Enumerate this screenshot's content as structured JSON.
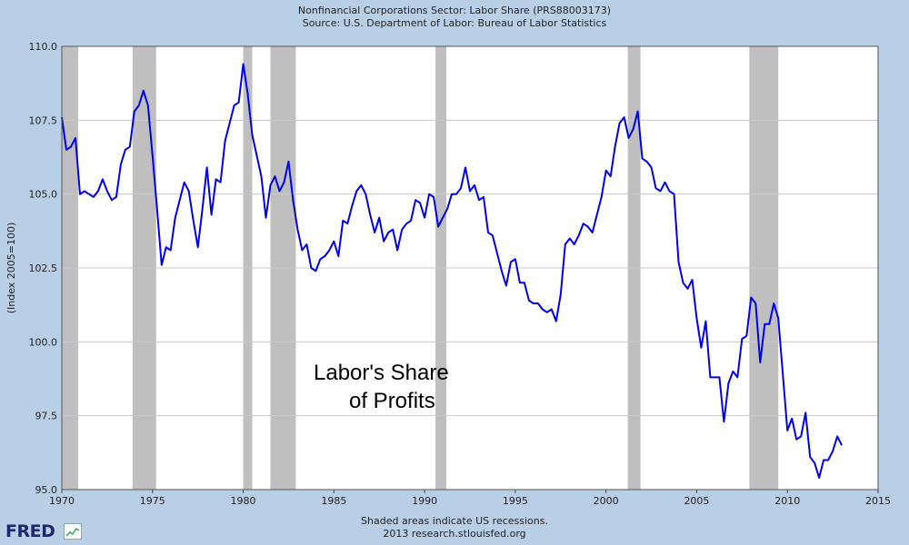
{
  "header": {
    "title": "Nonfinancial Corporations Sector: Labor Share (PRS88003173)",
    "source": "Source: U.S. Department of Labor: Bureau of Labor Statistics"
  },
  "footer": {
    "note": "Shaded areas indicate US recessions.",
    "credit": "2013 research.stlouisfed.org",
    "logo": "FRED"
  },
  "colors": {
    "background": "#b9cfe6",
    "plot_bg": "#ffffff",
    "line": "#0000ee",
    "recession": "#bfbfbf",
    "grid": "#c8c8c8"
  },
  "chart_data": {
    "type": "line",
    "title": "Nonfinancial Corporations Sector: Labor Share (PRS88003173)",
    "subtitle": "Source: U.S. Department of Labor: Bureau of Labor Statistics",
    "xlabel": "",
    "ylabel": "(Index 2005=100)",
    "xlim": [
      1970,
      2015
    ],
    "ylim": [
      95.0,
      110.0
    ],
    "xticks": [
      1970,
      1975,
      1980,
      1985,
      1990,
      1995,
      2000,
      2005,
      2010,
      2015
    ],
    "yticks": [
      95.0,
      97.5,
      100.0,
      102.5,
      105.0,
      107.5,
      110.0
    ],
    "ytick_labels": [
      "95.0",
      "97.5",
      "100.0",
      "102.5",
      "105.0",
      "107.5",
      "110.0"
    ],
    "grid": true,
    "annotation": [
      "Labor's Share",
      "of Profits"
    ],
    "recessions": [
      [
        1969.9,
        1970.9
      ],
      [
        1973.9,
        1975.2
      ],
      [
        1980.0,
        1980.5
      ],
      [
        1981.5,
        1982.9
      ],
      [
        1990.6,
        1991.2
      ],
      [
        2001.2,
        2001.9
      ],
      [
        2007.9,
        2009.5
      ]
    ],
    "series": [
      {
        "x": [
          1970.0,
          1970.25,
          1970.5,
          1970.75,
          1971.0,
          1971.25,
          1971.5,
          1971.75,
          1972.0,
          1972.25,
          1972.5,
          1972.75,
          1973.0,
          1973.25,
          1973.5,
          1973.75,
          1974.0,
          1974.25,
          1974.5,
          1974.75,
          1975.0,
          1975.25,
          1975.5,
          1975.75,
          1976.0,
          1976.25,
          1976.5,
          1976.75,
          1977.0,
          1977.25,
          1977.5,
          1977.75,
          1978.0,
          1978.25,
          1978.5,
          1978.75,
          1979.0,
          1979.25,
          1979.5,
          1979.75,
          1980.0,
          1980.25,
          1980.5,
          1980.75,
          1981.0,
          1981.25,
          1981.5,
          1981.75,
          1982.0,
          1982.25,
          1982.5,
          1982.75,
          1983.0,
          1983.25,
          1983.5,
          1983.75,
          1984.0,
          1984.25,
          1984.5,
          1984.75,
          1985.0,
          1985.25,
          1985.5,
          1985.75,
          1986.0,
          1986.25,
          1986.5,
          1986.75,
          1987.0,
          1987.25,
          1987.5,
          1987.75,
          1988.0,
          1988.25,
          1988.5,
          1988.75,
          1989.0,
          1989.25,
          1989.5,
          1989.75,
          1990.0,
          1990.25,
          1990.5,
          1990.75,
          1991.0,
          1991.25,
          1991.5,
          1991.75,
          1992.0,
          1992.25,
          1992.5,
          1992.75,
          1993.0,
          1993.25,
          1993.5,
          1993.75,
          1994.0,
          1994.25,
          1994.5,
          1994.75,
          1995.0,
          1995.25,
          1995.5,
          1995.75,
          1996.0,
          1996.25,
          1996.5,
          1996.75,
          1997.0,
          1997.25,
          1997.5,
          1997.75,
          1998.0,
          1998.25,
          1998.5,
          1998.75,
          1999.0,
          1999.25,
          1999.5,
          1999.75,
          2000.0,
          2000.25,
          2000.5,
          2000.75,
          2001.0,
          2001.25,
          2001.5,
          2001.75,
          2002.0,
          2002.25,
          2002.5,
          2002.75,
          2003.0,
          2003.25,
          2003.5,
          2003.75,
          2004.0,
          2004.25,
          2004.5,
          2004.75,
          2005.0,
          2005.25,
          2005.5,
          2005.75,
          2006.0,
          2006.25,
          2006.5,
          2006.75,
          2007.0,
          2007.25,
          2007.5,
          2007.75,
          2008.0,
          2008.25,
          2008.5,
          2008.75,
          2009.0,
          2009.25,
          2009.5,
          2009.75,
          2010.0,
          2010.25,
          2010.5,
          2010.75,
          2011.0,
          2011.25,
          2011.5,
          2011.75,
          2012.0,
          2012.25,
          2012.5,
          2012.75,
          2013.0
        ],
        "values": [
          107.6,
          106.5,
          106.6,
          106.9,
          105.0,
          105.1,
          105.0,
          104.9,
          105.1,
          105.5,
          105.1,
          104.8,
          104.9,
          106.0,
          106.5,
          106.6,
          107.8,
          108.0,
          108.5,
          108.0,
          106.3,
          104.5,
          102.6,
          103.2,
          103.1,
          104.2,
          104.8,
          105.4,
          105.1,
          104.1,
          103.2,
          104.5,
          105.9,
          104.3,
          105.5,
          105.4,
          106.8,
          107.4,
          108.0,
          108.1,
          109.4,
          108.4,
          107.0,
          106.3,
          105.6,
          104.2,
          105.3,
          105.6,
          105.1,
          105.4,
          106.1,
          104.8,
          103.8,
          103.1,
          103.3,
          102.5,
          102.4,
          102.8,
          102.9,
          103.1,
          103.4,
          102.9,
          104.1,
          104.0,
          104.6,
          105.1,
          105.3,
          105.0,
          104.3,
          103.7,
          104.2,
          103.4,
          103.7,
          103.8,
          103.1,
          103.8,
          104.0,
          104.1,
          104.8,
          104.7,
          104.2,
          105.0,
          104.9,
          103.9,
          104.2,
          104.5,
          105.0,
          105.0,
          105.2,
          105.9,
          105.1,
          105.3,
          104.8,
          104.9,
          103.7,
          103.6,
          103.0,
          102.4,
          101.9,
          102.7,
          102.8,
          102.0,
          102.0,
          101.4,
          101.3,
          101.3,
          101.1,
          101.0,
          101.1,
          100.7,
          101.6,
          103.3,
          103.5,
          103.3,
          103.6,
          104.0,
          103.9,
          103.7,
          104.3,
          104.9,
          105.8,
          105.6,
          106.6,
          107.4,
          107.6,
          106.9,
          107.2,
          107.8,
          106.2,
          106.1,
          105.9,
          105.2,
          105.1,
          105.4,
          105.1,
          105.0,
          102.7,
          102.0,
          101.8,
          102.1,
          100.8,
          99.8,
          100.7,
          98.8,
          98.8,
          98.8,
          97.3,
          98.6,
          99.0,
          98.8,
          100.1,
          100.2,
          101.5,
          101.3,
          99.3,
          100.6,
          100.6,
          101.3,
          100.8,
          98.9,
          97.0,
          97.4,
          96.7,
          96.8,
          97.6,
          96.1,
          95.9,
          95.4,
          96.0,
          96.0,
          96.3,
          96.8,
          96.5
        ]
      }
    ]
  }
}
